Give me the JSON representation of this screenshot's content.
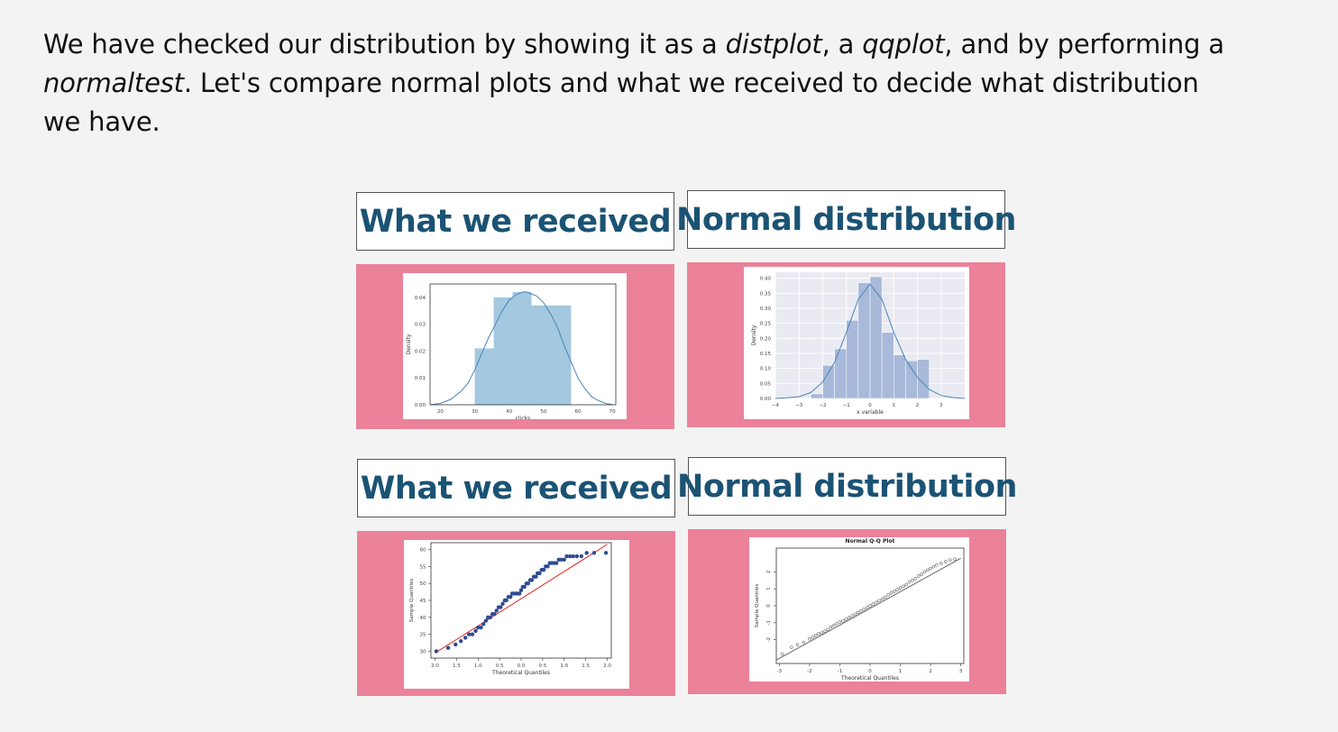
{
  "intro": {
    "part1": "We have checked our distribution by showing it as a ",
    "distplot": "distplot",
    "part2": ", a ",
    "qqplot": "qqplot",
    "part3": ", and by performing a ",
    "normaltest": "normaltest",
    "part4": ". Let's compare normal plots and what we received to decide what distribution we have."
  },
  "labels": {
    "received_top": "What we received",
    "normal_top": "Normal distribution",
    "received_bottom": "What we received",
    "normal_bottom": "Normal distribution"
  },
  "colors": {
    "panel": "#eb8299",
    "label_text": "#1b5374",
    "hist_fill": "#a4c8e0",
    "kde_line": "#4a84b6",
    "normal_fill": "#a8b9da",
    "qq_point": "#2f4b91",
    "qq_line": "#e02020"
  },
  "chart_data": [
    {
      "type": "bar",
      "subtype": "histogram-kde",
      "xlabel": "clicks",
      "ylabel": "Density",
      "xlim": [
        17,
        71
      ],
      "ylim": [
        0,
        0.045
      ],
      "xticks": [
        "20",
        "30",
        "40",
        "50",
        "60",
        "70"
      ],
      "yticks": [
        "0.00",
        "0.01",
        "0.02",
        "0.03",
        "0.04"
      ],
      "bins": [
        {
          "x0": 30.0,
          "x1": 35.5,
          "value": 0.021
        },
        {
          "x0": 35.5,
          "x1": 41.0,
          "value": 0.04
        },
        {
          "x0": 41.0,
          "x1": 46.5,
          "value": 0.042
        },
        {
          "x0": 46.5,
          "x1": 58.0,
          "value": 0.037
        }
      ],
      "kde": {
        "x": [
          17,
          20,
          23,
          26,
          28,
          30,
          32,
          34,
          36,
          38,
          40,
          42,
          44,
          45,
          46,
          48,
          50,
          52,
          54,
          56,
          58,
          60,
          62,
          64,
          66,
          68,
          70
        ],
        "y": [
          0.0,
          0.0005,
          0.002,
          0.005,
          0.008,
          0.013,
          0.019,
          0.025,
          0.03,
          0.035,
          0.039,
          0.041,
          0.042,
          0.042,
          0.0415,
          0.0405,
          0.038,
          0.034,
          0.029,
          0.022,
          0.016,
          0.01,
          0.006,
          0.003,
          0.0015,
          0.0005,
          0.0001
        ]
      }
    },
    {
      "type": "bar",
      "subtype": "histogram-kde",
      "xlabel": "x variable",
      "ylabel": "Density",
      "xlim": [
        -4,
        4
      ],
      "ylim": [
        0,
        0.42
      ],
      "xticks": [
        "−4",
        "−3",
        "−2",
        "−1",
        "0",
        "1",
        "2",
        "3"
      ],
      "yticks": [
        "0.00",
        "0.05",
        "0.10",
        "0.15",
        "0.20",
        "0.25",
        "0.30",
        "0.35",
        "0.40"
      ],
      "bins": [
        {
          "x0": -2.5,
          "x1": -2.0,
          "value": 0.015
        },
        {
          "x0": -2.0,
          "x1": -1.5,
          "value": 0.11
        },
        {
          "x0": -1.5,
          "x1": -1.0,
          "value": 0.165
        },
        {
          "x0": -1.0,
          "x1": -0.5,
          "value": 0.26
        },
        {
          "x0": -0.5,
          "x1": 0.0,
          "value": 0.385
        },
        {
          "x0": 0.0,
          "x1": 0.5,
          "value": 0.405
        },
        {
          "x0": 0.5,
          "x1": 1.0,
          "value": 0.22
        },
        {
          "x0": 1.0,
          "x1": 1.5,
          "value": 0.145
        },
        {
          "x0": 1.5,
          "x1": 2.0,
          "value": 0.125
        },
        {
          "x0": 2.0,
          "x1": 2.5,
          "value": 0.13
        }
      ],
      "kde": {
        "x": [
          -4,
          -3.5,
          -3,
          -2.5,
          -2,
          -1.5,
          -1,
          -0.5,
          0,
          0.5,
          1,
          1.5,
          2,
          2.5,
          3,
          3.5,
          4
        ],
        "y": [
          0.0,
          0.002,
          0.006,
          0.02,
          0.055,
          0.12,
          0.22,
          0.33,
          0.38,
          0.33,
          0.22,
          0.13,
          0.07,
          0.03,
          0.01,
          0.003,
          0.0
        ]
      }
    },
    {
      "type": "scatter",
      "subtype": "qq-plot",
      "xlabel": "Theoretical Quantiles",
      "ylabel": "Sample Quantiles",
      "xlim": [
        -2.2,
        2.2
      ],
      "ylim": [
        28,
        62
      ],
      "xticks": [
        "2.0",
        "1.5",
        "1.0",
        "0.5",
        "0.0",
        "0.5",
        "1.0",
        "1.5",
        "2.0"
      ],
      "yticks": [
        "30",
        "35",
        "40",
        "45",
        "50",
        "55",
        "60"
      ],
      "line": {
        "x0": -2.1,
        "y0": 29.5,
        "x1": 2.1,
        "y1": 61.5
      },
      "points": {
        "x": [
          -2.07,
          -1.78,
          -1.6,
          -1.47,
          -1.36,
          -1.27,
          -1.19,
          -1.11,
          -1.05,
          -0.98,
          -0.92,
          -0.86,
          -0.81,
          -0.75,
          -0.7,
          -0.65,
          -0.6,
          -0.55,
          -0.5,
          -0.45,
          -0.4,
          -0.36,
          -0.31,
          -0.26,
          -0.22,
          -0.17,
          -0.13,
          -0.08,
          -0.04,
          0.0,
          0.04,
          0.08,
          0.13,
          0.17,
          0.22,
          0.26,
          0.31,
          0.36,
          0.4,
          0.45,
          0.5,
          0.55,
          0.6,
          0.65,
          0.7,
          0.75,
          0.81,
          0.86,
          0.92,
          0.98,
          1.05,
          1.11,
          1.19,
          1.27,
          1.36,
          1.47,
          1.6,
          1.78,
          2.07
        ],
        "y": [
          30,
          31,
          32,
          33,
          34,
          35,
          35,
          36,
          37,
          37,
          38,
          39,
          40,
          40,
          41,
          41,
          42,
          43,
          43,
          44,
          45,
          45,
          46,
          46,
          47,
          47,
          47,
          47,
          47,
          48,
          49,
          49,
          50,
          50,
          51,
          51,
          52,
          52,
          53,
          53,
          54,
          54,
          55,
          55,
          56,
          56,
          56,
          56,
          57,
          57,
          57,
          58,
          58,
          58,
          58,
          58,
          59,
          59,
          59
        ]
      }
    },
    {
      "type": "scatter",
      "subtype": "qq-plot",
      "title": "Normal Q-Q Plot",
      "xlabel": "Theoretical Quantiles",
      "ylabel": "Sample Quantiles",
      "xlim": [
        -3.1,
        3.1
      ],
      "ylim": [
        -3.4,
        3.4
      ],
      "xticks": [
        "-3",
        "-2",
        "-1",
        "0",
        "1",
        "2",
        "3"
      ],
      "yticks": [
        "-2",
        "-1",
        "0",
        "1",
        "2"
      ],
      "line": {
        "x0": -3.1,
        "y0": -3.2,
        "x1": 3.0,
        "y1": 2.8
      },
      "points": {
        "x": [
          -2.9,
          -2.6,
          -2.4,
          -2.2,
          -2.0,
          -1.9,
          -1.8,
          -1.7,
          -1.6,
          -1.5,
          -1.4,
          -1.3,
          -1.2,
          -1.1,
          -1.0,
          -0.9,
          -0.8,
          -0.7,
          -0.6,
          -0.5,
          -0.4,
          -0.3,
          -0.2,
          -0.1,
          0.0,
          0.1,
          0.2,
          0.3,
          0.4,
          0.5,
          0.6,
          0.7,
          0.8,
          0.9,
          1.0,
          1.1,
          1.2,
          1.3,
          1.4,
          1.5,
          1.6,
          1.7,
          1.8,
          1.9,
          2.0,
          2.1,
          2.2,
          2.35,
          2.5,
          2.65,
          2.8
        ],
        "y": [
          -2.85,
          -2.45,
          -2.3,
          -2.15,
          -1.95,
          -1.85,
          -1.75,
          -1.65,
          -1.6,
          -1.5,
          -1.4,
          -1.25,
          -1.15,
          -1.05,
          -0.95,
          -0.9,
          -0.8,
          -0.7,
          -0.6,
          -0.5,
          -0.4,
          -0.3,
          -0.2,
          -0.1,
          0.0,
          0.1,
          0.2,
          0.3,
          0.4,
          0.5,
          0.65,
          0.75,
          0.85,
          0.95,
          1.05,
          1.15,
          1.25,
          1.4,
          1.5,
          1.6,
          1.75,
          1.85,
          2.0,
          2.1,
          2.2,
          2.3,
          2.4,
          2.5,
          2.6,
          2.7,
          2.75
        ]
      }
    }
  ]
}
